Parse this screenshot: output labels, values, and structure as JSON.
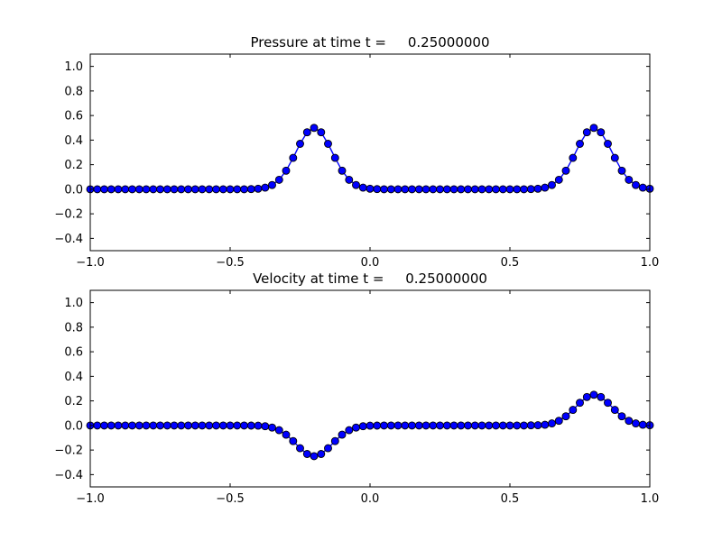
{
  "figure": {
    "background": "#ffffff",
    "frame_color": "#000000"
  },
  "chart_data": [
    {
      "type": "line",
      "title": "Pressure at time t =     0.25000000",
      "xlabel": "",
      "ylabel": "",
      "xlim": [
        -1.0,
        1.0
      ],
      "ylim": [
        -0.5,
        1.1
      ],
      "grid": false,
      "legend": "none",
      "xticks": [
        -1.0,
        -0.5,
        0.0,
        0.5,
        1.0
      ],
      "xtick_labels": [
        "−1.0",
        "−0.5",
        "0.0",
        "0.5",
        "1.0"
      ],
      "yticks": [
        -0.4,
        -0.2,
        0.0,
        0.2,
        0.4,
        0.6,
        0.8,
        1.0
      ],
      "ytick_labels": [
        "−0.4",
        "−0.2",
        "0.0",
        "0.2",
        "0.4",
        "0.6",
        "0.8",
        "1.0"
      ],
      "series": [
        {
          "name": "pressure",
          "color": "#0000ff",
          "marker": "o",
          "marker_edge": "#000000",
          "x_start": -1.0,
          "x_step": 0.025,
          "y": [
            0,
            0,
            0,
            0,
            0,
            0,
            0,
            0,
            0,
            0,
            0,
            0,
            0,
            0,
            0,
            0,
            0,
            0,
            0,
            0,
            0,
            0,
            0,
            0.001,
            0.004,
            0.013,
            0.034,
            0.077,
            0.151,
            0.255,
            0.37,
            0.464,
            0.5,
            0.464,
            0.37,
            0.255,
            0.151,
            0.077,
            0.034,
            0.013,
            0.004,
            0.001,
            0,
            0,
            0,
            0,
            0,
            0,
            0,
            0,
            0,
            0,
            0,
            0,
            0,
            0,
            0,
            0,
            0,
            0,
            0,
            0,
            0,
            0.001,
            0.004,
            0.013,
            0.034,
            0.077,
            0.151,
            0.255,
            0.37,
            0.464,
            0.5,
            0.464,
            0.37,
            0.255,
            0.151,
            0.077,
            0.034,
            0.013,
            0.004
          ]
        }
      ]
    },
    {
      "type": "line",
      "title": "Velocity at time t =     0.25000000",
      "xlabel": "",
      "ylabel": "",
      "xlim": [
        -1.0,
        1.0
      ],
      "ylim": [
        -0.5,
        1.1
      ],
      "grid": false,
      "legend": "none",
      "xticks": [
        -1.0,
        -0.5,
        0.0,
        0.5,
        1.0
      ],
      "xtick_labels": [
        "−1.0",
        "−0.5",
        "0.0",
        "0.5",
        "1.0"
      ],
      "yticks": [
        -0.4,
        -0.2,
        0.0,
        0.2,
        0.4,
        0.6,
        0.8,
        1.0
      ],
      "ytick_labels": [
        "−0.4",
        "−0.2",
        "0.0",
        "0.2",
        "0.4",
        "0.6",
        "0.8",
        "1.0"
      ],
      "series": [
        {
          "name": "velocity",
          "color": "#0000ff",
          "marker": "o",
          "marker_edge": "#000000",
          "x_start": -1.0,
          "x_step": 0.025,
          "y": [
            0,
            0,
            0,
            0,
            0,
            0,
            0,
            0,
            0,
            0,
            0,
            0,
            0,
            0,
            0,
            0,
            0,
            0,
            0,
            0,
            0,
            0,
            0,
            -0.001,
            -0.002,
            -0.006,
            -0.017,
            -0.038,
            -0.075,
            -0.127,
            -0.185,
            -0.232,
            -0.25,
            -0.232,
            -0.185,
            -0.127,
            -0.075,
            -0.038,
            -0.017,
            -0.006,
            -0.002,
            -0.001,
            0,
            0,
            0,
            0,
            0,
            0,
            0,
            0,
            0,
            0,
            0,
            0,
            0,
            0,
            0,
            0,
            0,
            0,
            0,
            0,
            0,
            0.001,
            0.002,
            0.006,
            0.017,
            0.038,
            0.075,
            0.127,
            0.185,
            0.232,
            0.25,
            0.232,
            0.185,
            0.127,
            0.075,
            0.038,
            0.017,
            0.006,
            0.002
          ]
        }
      ]
    }
  ]
}
